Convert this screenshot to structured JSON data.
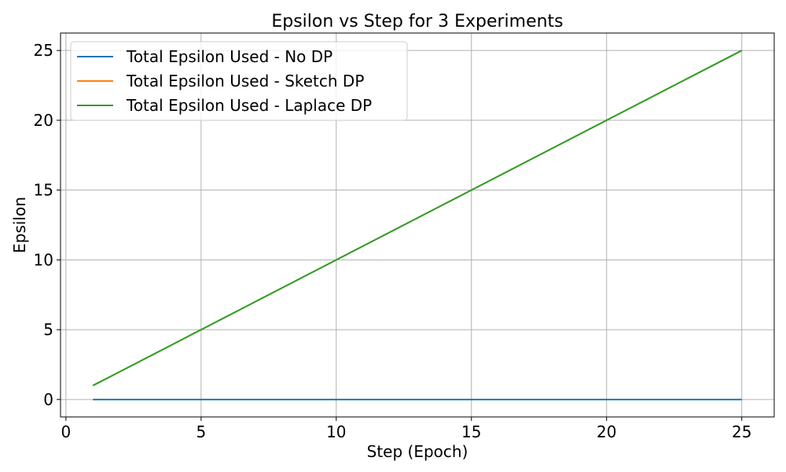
{
  "chart_data": {
    "type": "line",
    "title": "Epsilon vs Step for 3 Experiments",
    "xlabel": "Step (Epoch)",
    "ylabel": "Epsilon",
    "xlim": [
      -0.2,
      26.2
    ],
    "ylim": [
      -1.25,
      26.25
    ],
    "xticks": [
      0,
      5,
      10,
      15,
      20,
      25
    ],
    "yticks": [
      0,
      5,
      10,
      15,
      20,
      25
    ],
    "grid": true,
    "legend_position": "top-left",
    "x": [
      1,
      2,
      3,
      4,
      5,
      6,
      7,
      8,
      9,
      10,
      11,
      12,
      13,
      14,
      15,
      16,
      17,
      18,
      19,
      20,
      21,
      22,
      23,
      24,
      25
    ],
    "series": [
      {
        "name": "Total Epsilon Used - No DP",
        "color": "#1f77b4",
        "values": [
          0,
          0,
          0,
          0,
          0,
          0,
          0,
          0,
          0,
          0,
          0,
          0,
          0,
          0,
          0,
          0,
          0,
          0,
          0,
          0,
          0,
          0,
          0,
          0,
          0
        ]
      },
      {
        "name": "Total Epsilon Used - Sketch DP",
        "color": "#ff7f0e",
        "values": [
          1,
          2,
          3,
          4,
          5,
          6,
          7,
          8,
          9,
          10,
          11,
          12,
          13,
          14,
          15,
          16,
          17,
          18,
          19,
          20,
          21,
          22,
          23,
          24,
          25
        ]
      },
      {
        "name": "Total Epsilon Used - Laplace DP",
        "color": "#2ca02c",
        "values": [
          1,
          2,
          3,
          4,
          5,
          6,
          7,
          8,
          9,
          10,
          11,
          12,
          13,
          14,
          15,
          16,
          17,
          18,
          19,
          20,
          21,
          22,
          23,
          24,
          25
        ]
      }
    ]
  }
}
